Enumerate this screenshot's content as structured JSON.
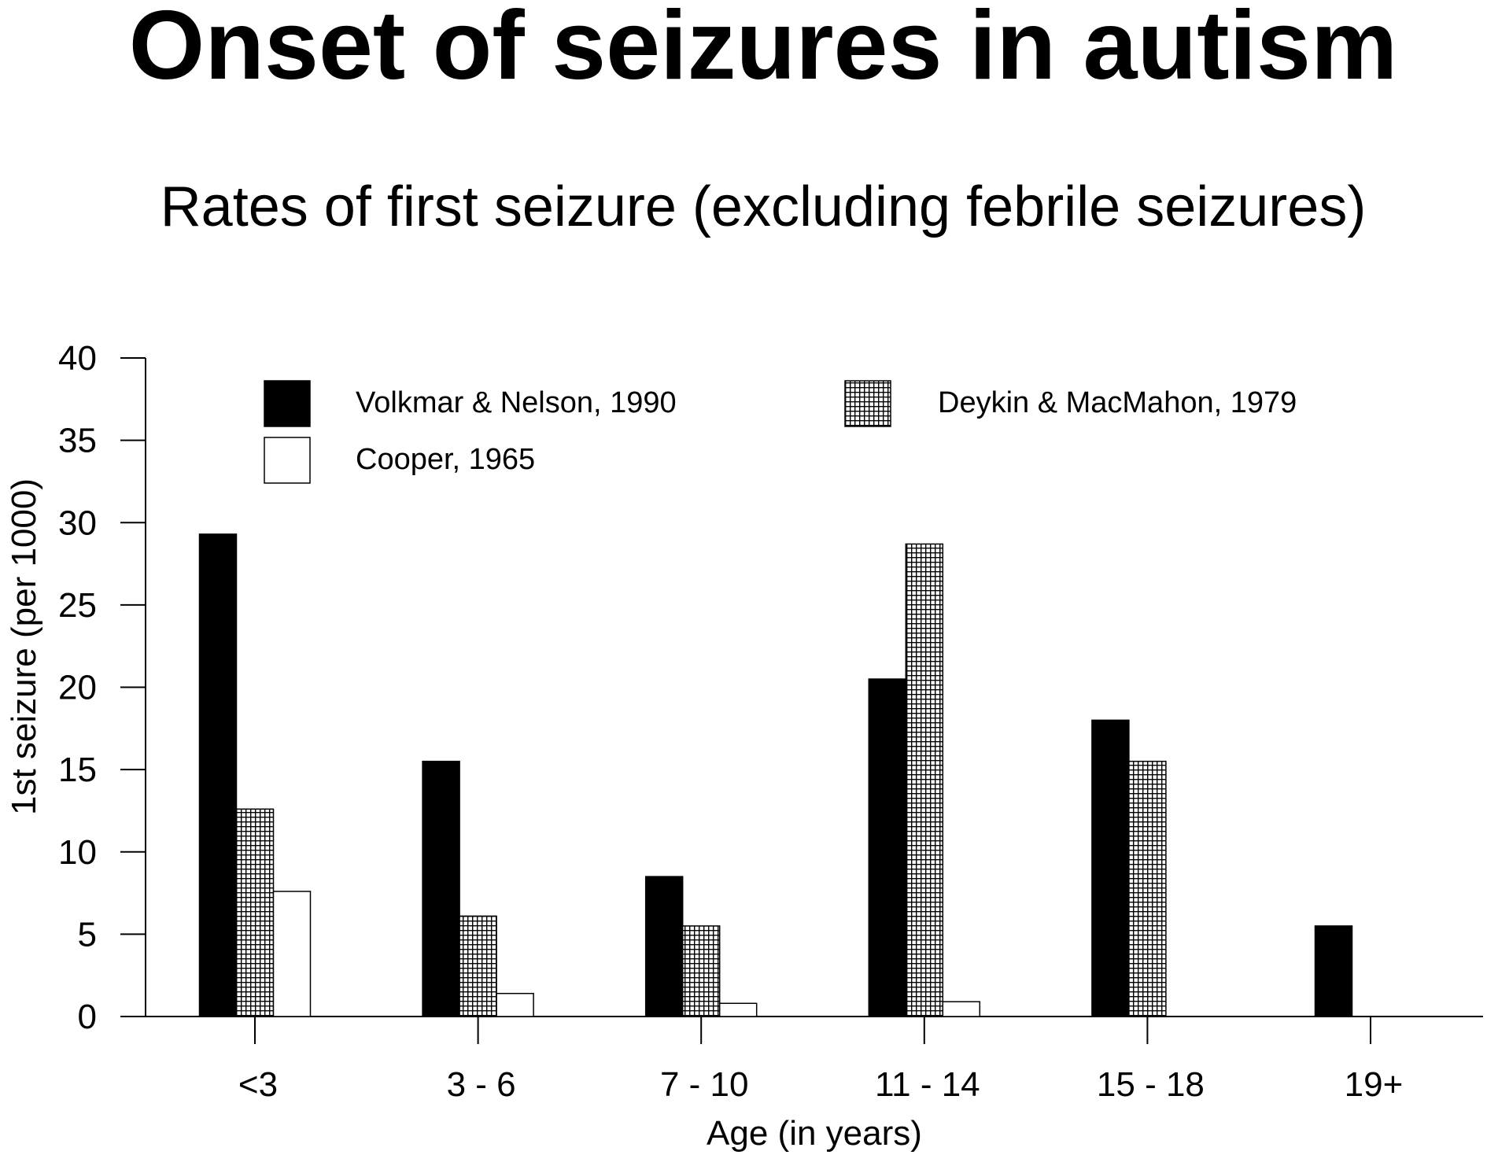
{
  "chart_data": {
    "type": "bar",
    "title": "Onset of seizures in autism",
    "subtitle": "Rates of first seizure (excluding febrile seizures)",
    "xlabel": "Age (in years)",
    "ylabel": "1st seizure (per 1000)",
    "ylim": [
      0,
      40
    ],
    "yticks": [
      0,
      5,
      10,
      15,
      20,
      25,
      30,
      35,
      40
    ],
    "yticks_labels": [
      "0",
      "5",
      "10",
      "15",
      "20",
      "25",
      "30",
      "35",
      "40"
    ],
    "categories": [
      "<3",
      "3 - 6",
      "7 - 10",
      "11 - 14",
      "15 - 18",
      "19+"
    ],
    "grid": false,
    "legend_position": "top",
    "series": [
      {
        "name": "Volkmar & Nelson, 1990",
        "fill": "solid",
        "color": "#000000",
        "values": [
          29.3,
          15.5,
          8.5,
          20.5,
          18,
          5.5
        ]
      },
      {
        "name": "Deykin & MacMahon, 1979",
        "fill": "crosshatch",
        "color": "#000000",
        "values": [
          12.6,
          6.1,
          5.5,
          28.7,
          15.5,
          null
        ]
      },
      {
        "name": "Cooper, 1965",
        "fill": "open",
        "color": "#ffffff",
        "values": [
          7.6,
          1.4,
          0.8,
          0.9,
          null,
          null
        ]
      }
    ]
  }
}
